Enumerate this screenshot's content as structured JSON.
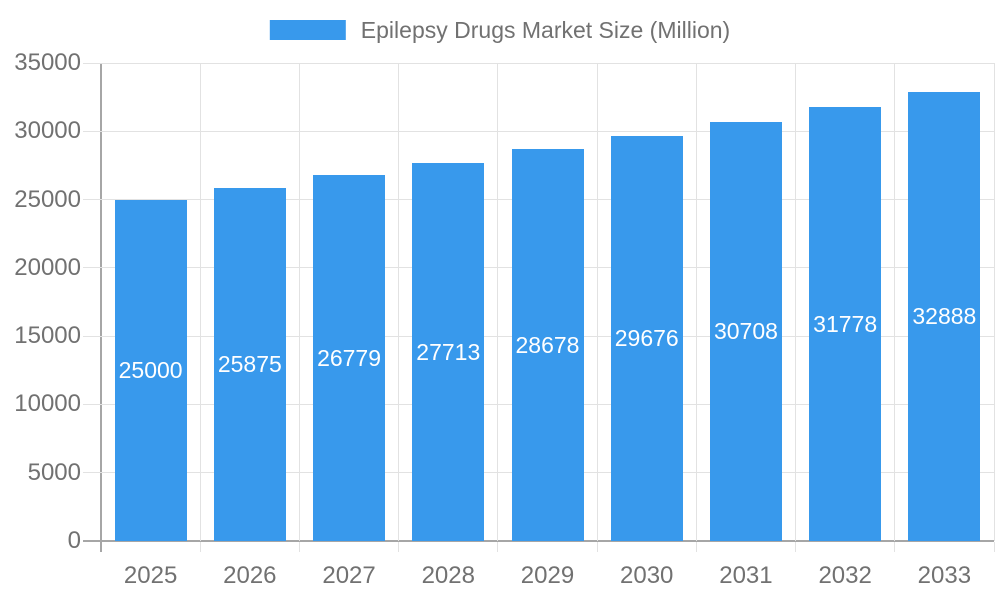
{
  "legend": {
    "label": "Epilepsy Drugs Market Size (Million)"
  },
  "chart_data": {
    "type": "bar",
    "title": "Epilepsy Drugs Market Size (Million)",
    "series_name": "Epilepsy Drugs Market Size (Million)",
    "categories": [
      "2025",
      "2026",
      "2027",
      "2028",
      "2029",
      "2030",
      "2031",
      "2032",
      "2033"
    ],
    "values": [
      25000,
      25875,
      26779,
      27713,
      28678,
      29676,
      30708,
      31778,
      32888
    ],
    "value_labels_shown": true,
    "value_label_position": "inside-center",
    "xlabel": "",
    "ylabel": "",
    "ylim": [
      0,
      35000
    ],
    "y_ticks": [
      0,
      5000,
      10000,
      15000,
      20000,
      25000,
      30000,
      35000
    ],
    "grid": true,
    "legend_position": "top-center"
  },
  "colors": {
    "bar": "#3899ec",
    "grid": "#e2e2e2",
    "axis": "#a6a6a6",
    "axis_text": "#717171",
    "value_label_text": "#ffffff",
    "background": "#ffffff"
  }
}
